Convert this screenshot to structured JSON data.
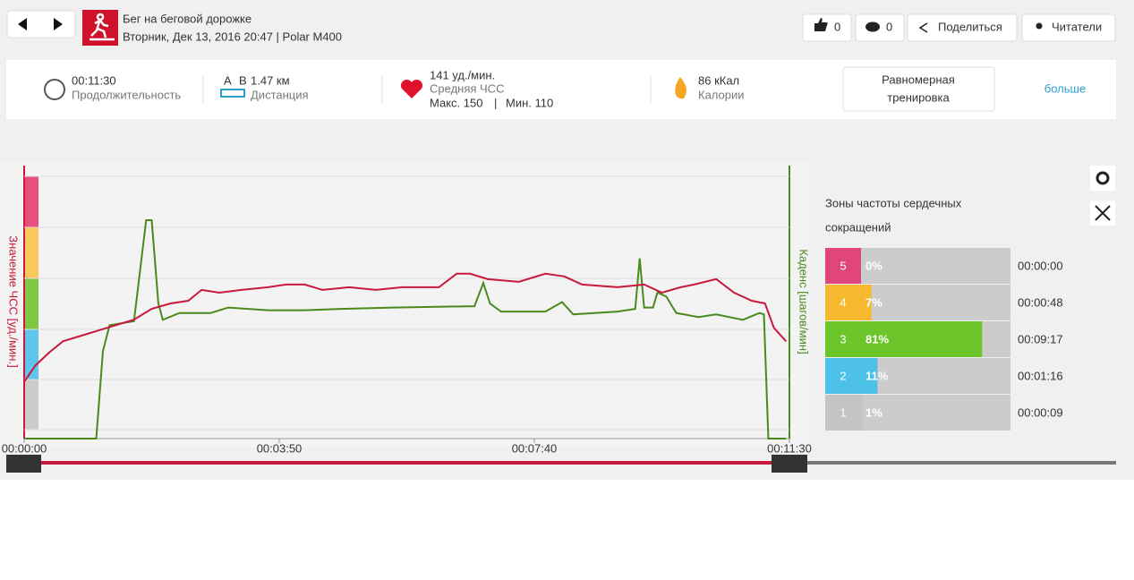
{
  "header": {
    "title": "Бег на беговой дорожке",
    "subtitle": "Вторник, Дек 13, 2016 20:47 | Polar M400"
  },
  "actions": {
    "likes": "0",
    "comments": "0",
    "share": "Поделиться",
    "readers": "Читатели"
  },
  "summary": {
    "duration": {
      "value": "00:11:30",
      "label": "Продолжительность"
    },
    "distance": {
      "icon_labels": [
        "A",
        "B"
      ],
      "value": "1.47 км",
      "label": "Дистанция"
    },
    "heart_rate": {
      "value": "141 уд./мин.",
      "label": "Средняя ЧСС",
      "max": "Макс. 150",
      "separator": "|",
      "min": "Мин. 110"
    },
    "calories": {
      "value": "86 кКал",
      "label": "Калории"
    },
    "benefit": [
      "Равномерная",
      "тренировка"
    ],
    "more": "больше"
  },
  "chart_data": {
    "type": "line",
    "ylabel": "Значение ЧСС [уд./мин.]",
    "y2label": "Каденс [шагов/мин]",
    "xlim": [
      0,
      690
    ],
    "xticks": [
      {
        "value": 0,
        "label": "00:00:00"
      },
      {
        "value": 230,
        "label": "00:03:50"
      },
      {
        "value": 460,
        "label": "00:07:40"
      },
      {
        "value": 690,
        "label": "00:11:30"
      }
    ],
    "ylim": [
      92,
      193
    ],
    "y2lim": [
      0,
      200
    ],
    "grid": true,
    "series": [
      {
        "name": "ЧСС",
        "color": "#c8193c",
        "x": [
          0,
          10,
          23,
          35,
          51,
          67,
          83,
          99,
          115,
          132,
          148,
          160,
          176,
          196,
          220,
          236,
          253,
          269,
          293,
          317,
          341,
          374,
          390,
          402,
          418,
          446,
          470,
          487,
          503,
          535,
          559,
          575,
          592,
          604,
          624,
          640,
          656,
          668,
          676,
          687
        ],
        "values": [
          113,
          119,
          124,
          128,
          130,
          132,
          134,
          136,
          140,
          142,
          143,
          147,
          146,
          147,
          148,
          149,
          149,
          147,
          148,
          147,
          148,
          148,
          153,
          153,
          151,
          150,
          153,
          152,
          149,
          148,
          149,
          146,
          148,
          149,
          151,
          146,
          143,
          142,
          133,
          128
        ]
      },
      {
        "name": "Каденс",
        "color": "#4a8a1c",
        "axis": "y2",
        "x": [
          0,
          65,
          71,
          77,
          99,
          110,
          115,
          121,
          125,
          140,
          168,
          184,
          220,
          253,
          285,
          333,
          406,
          414,
          420,
          430,
          470,
          485,
          495,
          535,
          551,
          555,
          559,
          567,
          571,
          579,
          588,
          608,
          624,
          648,
          663,
          667,
          671,
          687
        ],
        "values": [
          0,
          0,
          64,
          83,
          86,
          160,
          160,
          99,
          87,
          92,
          92,
          96,
          94,
          94,
          95,
          96,
          97,
          114,
          99,
          93,
          93,
          100,
          91,
          93,
          95,
          132,
          96,
          96,
          107,
          104,
          92,
          89,
          91,
          87,
          92,
          91,
          0,
          0
        ]
      }
    ]
  },
  "zones": {
    "title": [
      "Зоны частоты сердечных",
      "сокращений"
    ],
    "numbers": [
      "5",
      "4",
      "3",
      "2",
      "1"
    ],
    "colors": [
      "#e0457b",
      "#f5b82e",
      "#6cc62b",
      "#4dc1e8",
      "#c4c4c4"
    ],
    "percents": [
      0,
      7,
      81,
      11,
      1
    ],
    "percent_labels": [
      "0%",
      "7%",
      "81%",
      "11%",
      "1%"
    ],
    "times": [
      "00:00:00",
      "00:00:48",
      "00:09:17",
      "00:01:16",
      "00:00:09"
    ]
  }
}
